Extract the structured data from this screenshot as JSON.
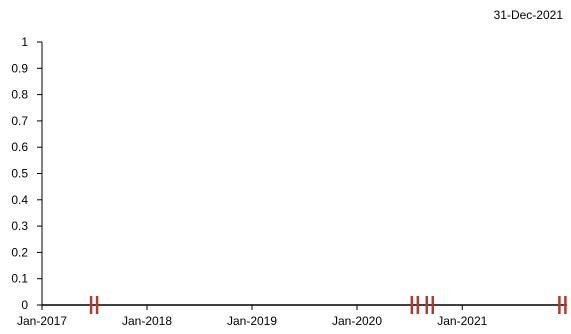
{
  "header": {
    "date": "31-Dec-2021"
  },
  "colors": {
    "axis": "#000000",
    "marker": "#b03a2e",
    "text": "#000000"
  },
  "chart_data": {
    "type": "scatter",
    "title": "",
    "xlabel": "",
    "ylabel": "",
    "xlim": [
      "2017-01-01",
      "2021-12-31"
    ],
    "ylim": [
      0,
      1
    ],
    "grid": false,
    "y_ticks": [
      "0",
      "0.1",
      "0.2",
      "0.3",
      "0.4",
      "0.5",
      "0.6",
      "0.7",
      "0.8",
      "0.9",
      "1"
    ],
    "x_ticks": [
      {
        "label": "Jan-2017",
        "date": "2017-01-01"
      },
      {
        "label": "Jan-2018",
        "date": "2018-01-01"
      },
      {
        "label": "Jan-2019",
        "date": "2019-01-01"
      },
      {
        "label": "Jan-2020",
        "date": "2020-01-01"
      },
      {
        "label": "Jan-2021",
        "date": "2021-01-01"
      }
    ],
    "series": [
      {
        "marker": "double-bar",
        "points": [
          {
            "x": "2017-07-01",
            "y": 0
          },
          {
            "x": "2020-07-20",
            "y": 0
          },
          {
            "x": "2020-09-10",
            "y": 0
          },
          {
            "x": "2021-12-15",
            "y": 0
          }
        ]
      }
    ]
  }
}
